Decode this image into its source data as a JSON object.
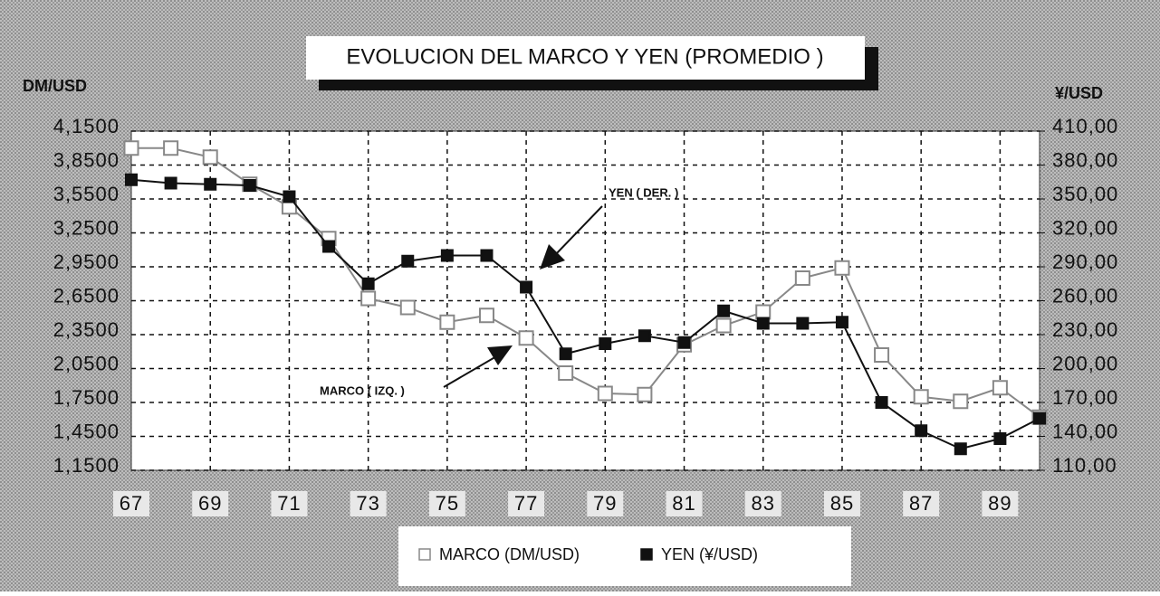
{
  "chart_data": {
    "type": "line",
    "title": "EVOLUCION DEL MARCO Y YEN (PROMEDIO )",
    "y_label": "DM/USD",
    "y2_label": "¥/USD",
    "annotations": [
      "YEN ( DER. )",
      "MARCO ( IZQ. )"
    ],
    "x": [
      67,
      68,
      69,
      70,
      71,
      72,
      73,
      74,
      75,
      76,
      77,
      78,
      79,
      80,
      81,
      82,
      83,
      84,
      85,
      86,
      87,
      88,
      89,
      90
    ],
    "xlim": [
      67,
      90
    ],
    "xticks": [
      67,
      69,
      71,
      73,
      75,
      77,
      79,
      81,
      83,
      85,
      87,
      89
    ],
    "ylim": [
      1.15,
      4.15
    ],
    "yticks": [
      {
        "value": 1.15,
        "label": "1,1500"
      },
      {
        "value": 1.45,
        "label": "1,4500"
      },
      {
        "value": 1.75,
        "label": "1,7500"
      },
      {
        "value": 2.05,
        "label": "2,0500"
      },
      {
        "value": 2.35,
        "label": "2,3500"
      },
      {
        "value": 2.65,
        "label": "2,6500"
      },
      {
        "value": 2.95,
        "label": "2,9500"
      },
      {
        "value": 3.25,
        "label": "3,2500"
      },
      {
        "value": 3.55,
        "label": "3,5500"
      },
      {
        "value": 3.85,
        "label": "3,8500"
      },
      {
        "value": 4.15,
        "label": "4,1500"
      }
    ],
    "y2lim": [
      110,
      410
    ],
    "y2ticks": [
      {
        "value": 110,
        "label": "110,00"
      },
      {
        "value": 140,
        "label": "140,00"
      },
      {
        "value": 170,
        "label": "170,00"
      },
      {
        "value": 200,
        "label": "200,00"
      },
      {
        "value": 230,
        "label": "230,00"
      },
      {
        "value": 260,
        "label": "260,00"
      },
      {
        "value": 290,
        "label": "290,00"
      },
      {
        "value": 320,
        "label": "320,00"
      },
      {
        "value": 350,
        "label": "350,00"
      },
      {
        "value": 380,
        "label": "380,00"
      },
      {
        "value": 410,
        "label": "410,00"
      }
    ],
    "grid": true,
    "series": [
      {
        "name": "MARCO (DM/USD)",
        "color": "#888888",
        "marker": "open-square",
        "values": [
          4.0,
          4.0,
          3.92,
          3.68,
          3.48,
          3.2,
          2.67,
          2.59,
          2.46,
          2.52,
          2.32,
          2.01,
          1.83,
          1.82,
          2.26,
          2.43,
          2.55,
          2.85,
          2.94,
          2.17,
          1.8,
          1.76,
          1.88,
          1.62
        ]
      },
      {
        "name": "YEN   (¥/USD)",
        "color": "#111111",
        "marker": "filled-square",
        "axis": "y2",
        "values": [
          367,
          364,
          363,
          362,
          352,
          308,
          275,
          295,
          300,
          300,
          272,
          213,
          222,
          229,
          223,
          251,
          240,
          240,
          241,
          170,
          145,
          129,
          138,
          156
        ]
      }
    ]
  }
}
